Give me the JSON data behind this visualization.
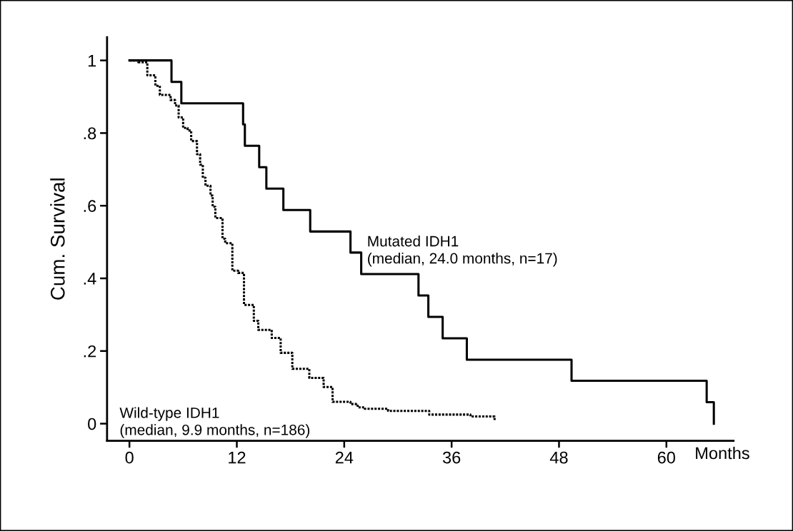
{
  "chart_data": {
    "type": "step",
    "ylabel": "Cum. Survival",
    "xlabel": "Months",
    "xlim": [
      -2.5,
      67.5
    ],
    "xticks": [
      0,
      12,
      24,
      36,
      48,
      60
    ],
    "ylim": [
      -0.047,
      1.064
    ],
    "yticks": [
      {
        "value": 0,
        "label": "0"
      },
      {
        "value": 0.2,
        "label": ".2"
      },
      {
        "value": 0.4,
        "label": ".4"
      },
      {
        "value": 0.6,
        "label": ".6"
      },
      {
        "value": 0.8,
        "label": ".8"
      },
      {
        "value": 1,
        "label": "1"
      }
    ],
    "grid": false,
    "marker": "none",
    "series": [
      {
        "color": "#000000",
        "line_style": "solid",
        "x": [
          0,
          4.7,
          5.8,
          12.7,
          12.9,
          14.5,
          15.3,
          17.2,
          20.2,
          24.7,
          25.9,
          32.3,
          33.4,
          35.0,
          37.7,
          49.4,
          64.5,
          65.3
        ],
        "values": [
          1,
          0.941,
          0.882,
          0.824,
          0.765,
          0.706,
          0.647,
          0.588,
          0.529,
          0.471,
          0.412,
          0.353,
          0.294,
          0.235,
          0.176,
          0.118,
          0.059,
          0
        ]
      },
      {
        "color": "#000000",
        "line_style": "dotted",
        "x": [
          0,
          1.0,
          2.0,
          2.9,
          3.4,
          4.6,
          5.1,
          5.5,
          6.0,
          6.5,
          6.9,
          7.55,
          7.9,
          8.2,
          8.5,
          9.06,
          9.3,
          9.6,
          10.4,
          10.7,
          11.5,
          12.15,
          12.8,
          13.9,
          14.4,
          15.9,
          16.9,
          18.2,
          20.1,
          21.7,
          22.7,
          24.7,
          25.5,
          26.3,
          28.9,
          33.5,
          38.1,
          40.8
        ],
        "values": [
          1,
          0.995,
          0.959,
          0.93,
          0.905,
          0.891,
          0.876,
          0.843,
          0.814,
          0.807,
          0.778,
          0.742,
          0.713,
          0.677,
          0.655,
          0.628,
          0.597,
          0.566,
          0.509,
          0.497,
          0.421,
          0.415,
          0.327,
          0.283,
          0.258,
          0.236,
          0.195,
          0.151,
          0.126,
          0.101,
          0.06,
          0.054,
          0.045,
          0.041,
          0.035,
          0.025,
          0.02,
          0.01
        ]
      }
    ],
    "annotations": [
      "Mutated IDH1\n(median, 24.0 months, n=17)",
      "Wild-type IDH1\n(median, 9.9 months, n=186)"
    ]
  }
}
